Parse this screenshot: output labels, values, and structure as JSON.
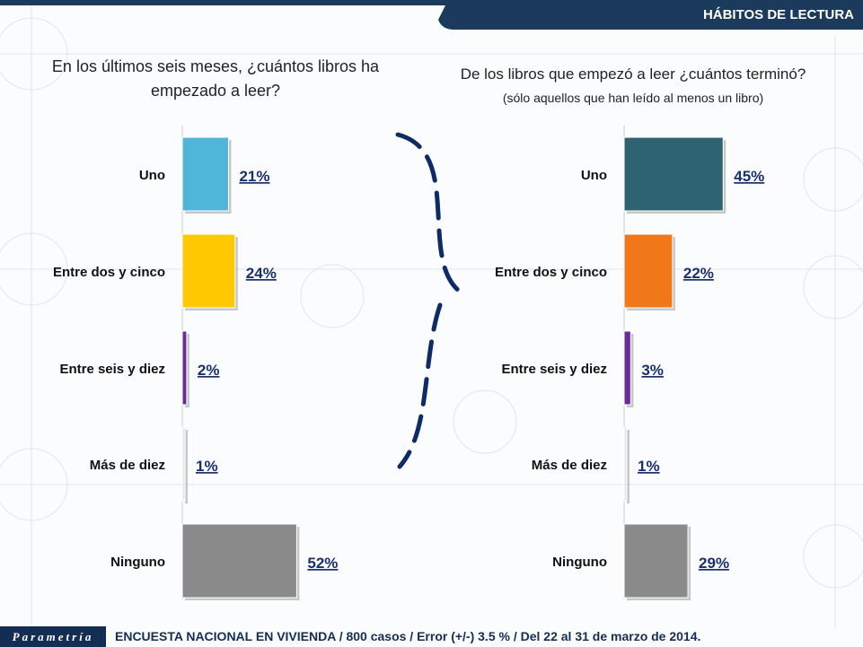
{
  "header": {
    "section_title": "HÁBITOS DE LECTURA"
  },
  "colors": {
    "brand_navy": "#1b3a5c",
    "divider": "#0f2b66",
    "label_text": "#111111",
    "value_text": "#1a2f6e"
  },
  "chart_data": [
    {
      "type": "bar",
      "orientation": "horizontal",
      "title": "En los últimos seis meses, ¿cuántos libros ha empezado a leer?",
      "categories": [
        "Uno",
        "Entre dos y cinco",
        "Entre seis y diez",
        "Más de diez",
        "Ninguno"
      ],
      "values": [
        21,
        24,
        2,
        1,
        52
      ],
      "value_labels": [
        "21%",
        "24%",
        "2%",
        "1%",
        "52%"
      ],
      "colors": [
        "#4fb6d8",
        "#ffc800",
        "#6a2a9a",
        "#e6e6e6",
        "#8a8a8a"
      ],
      "xlim": [
        0,
        100
      ],
      "unit": "%"
    },
    {
      "type": "bar",
      "orientation": "horizontal",
      "title": "De los libros que empezó a leer ¿cuántos terminó?",
      "subtitle": "(sólo aquellos que han leído al menos un libro)",
      "categories": [
        "Uno",
        "Entre dos y cinco",
        "Entre seis y diez",
        "Más de diez",
        "Ninguno"
      ],
      "values": [
        45,
        22,
        3,
        1,
        29
      ],
      "value_labels": [
        "45%",
        "22%",
        "3%",
        "1%",
        "29%"
      ],
      "colors": [
        "#2e6472",
        "#f07818",
        "#6a2a9a",
        "#e6e6e6",
        "#8a8a8a"
      ],
      "xlim": [
        0,
        100
      ],
      "unit": "%"
    }
  ],
  "footer": {
    "logo": "Parametría",
    "text": "ENCUESTA NACIONAL EN VIVIENDA / 800 casos / Error (+/-) 3.5 % / Del 22 al 31 de marzo de 2014."
  }
}
